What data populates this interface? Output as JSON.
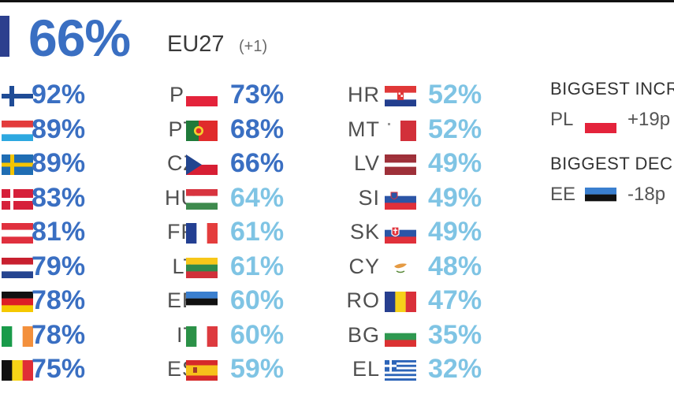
{
  "header": {
    "value": "66%",
    "region": "EU27",
    "change": "(+1)",
    "bar_color": "#2c3f8e",
    "value_color": "#3a6fc2"
  },
  "colors": {
    "dark": "#3a6fc2",
    "light": "#7fc4e4"
  },
  "chart_data": {
    "type": "table",
    "columns": [
      [
        {
          "code": "",
          "value": "92%",
          "flag": "FI",
          "tone": "dark"
        },
        {
          "code": "",
          "value": "89%",
          "flag": "LU",
          "tone": "dark"
        },
        {
          "code": "",
          "value": "89%",
          "flag": "SE",
          "tone": "dark"
        },
        {
          "code": "",
          "value": "83%",
          "flag": "DK",
          "tone": "dark"
        },
        {
          "code": "",
          "value": "81%",
          "flag": "AT",
          "tone": "dark"
        },
        {
          "code": "",
          "value": "79%",
          "flag": "NL",
          "tone": "dark"
        },
        {
          "code": "",
          "value": "78%",
          "flag": "DE",
          "tone": "dark"
        },
        {
          "code": "",
          "value": "78%",
          "flag": "IE",
          "tone": "dark"
        },
        {
          "code": "",
          "value": "75%",
          "flag": "BE",
          "tone": "dark"
        }
      ],
      [
        {
          "code": "PL",
          "value": "73%",
          "flag": "PL",
          "tone": "dark"
        },
        {
          "code": "PT",
          "value": "68%",
          "flag": "PT",
          "tone": "dark"
        },
        {
          "code": "CZ",
          "value": "66%",
          "flag": "CZ",
          "tone": "dark"
        },
        {
          "code": "HU",
          "value": "64%",
          "flag": "HU",
          "tone": "light"
        },
        {
          "code": "FR",
          "value": "61%",
          "flag": "FR",
          "tone": "light"
        },
        {
          "code": "LT",
          "value": "61%",
          "flag": "LT",
          "tone": "light"
        },
        {
          "code": "EE",
          "value": "60%",
          "flag": "EE",
          "tone": "light"
        },
        {
          "code": "IT",
          "value": "60%",
          "flag": "IT",
          "tone": "light"
        },
        {
          "code": "ES",
          "value": "59%",
          "flag": "ES",
          "tone": "light"
        }
      ],
      [
        {
          "code": "HR",
          "value": "52%",
          "flag": "HR",
          "tone": "light"
        },
        {
          "code": "MT",
          "value": "52%",
          "flag": "MT",
          "tone": "light"
        },
        {
          "code": "LV",
          "value": "49%",
          "flag": "LV",
          "tone": "light"
        },
        {
          "code": "SI",
          "value": "49%",
          "flag": "SI",
          "tone": "light"
        },
        {
          "code": "SK",
          "value": "49%",
          "flag": "SK",
          "tone": "light"
        },
        {
          "code": "CY",
          "value": "48%",
          "flag": "CY",
          "tone": "light"
        },
        {
          "code": "RO",
          "value": "47%",
          "flag": "RO",
          "tone": "light"
        },
        {
          "code": "BG",
          "value": "35%",
          "flag": "BG",
          "tone": "light"
        },
        {
          "code": "EL",
          "value": "32%",
          "flag": "EL",
          "tone": "light"
        }
      ]
    ]
  },
  "sidebar": {
    "increase": {
      "title": "BIGGEST INCR",
      "code": "PL",
      "flag": "PL",
      "value": "+19p"
    },
    "decrease": {
      "title": "BIGGEST DECR",
      "code": "EE",
      "flag": "EE",
      "value": "-18p"
    }
  }
}
